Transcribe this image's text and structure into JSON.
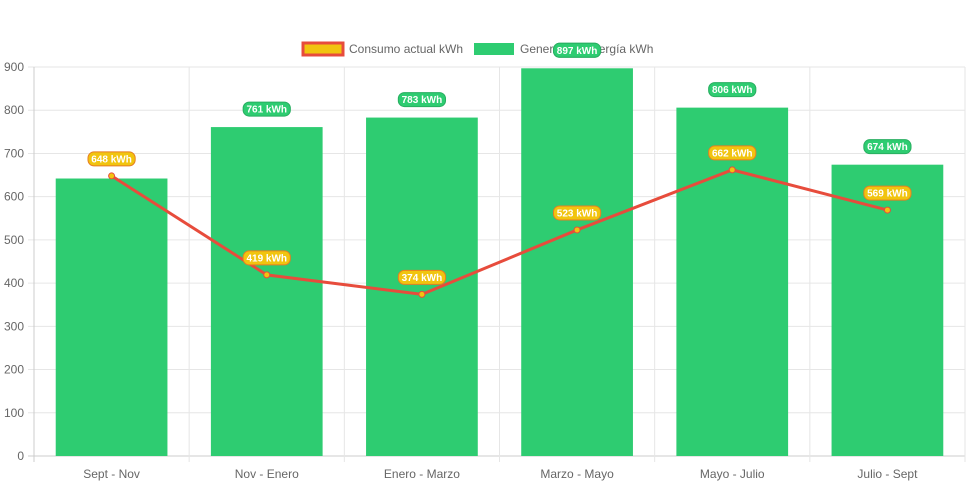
{
  "chart_data": {
    "type": "bar",
    "categories": [
      "Sept - Nov",
      "Nov - Enero",
      "Enero - Marzo",
      "Marzo - Mayo",
      "Mayo - Julio",
      "Julio - Sept"
    ],
    "series": [
      {
        "name": "Consumo actual kWh",
        "kind": "line",
        "values": [
          648,
          419,
          374,
          523,
          662,
          569
        ],
        "labels": [
          "648 kWh",
          "419 kWh",
          "374 kWh",
          "523 kWh",
          "662 kWh",
          "569 kWh"
        ],
        "color": "#e74c3c",
        "fill": "#f1c40f"
      },
      {
        "name": "Generación energía kWh",
        "kind": "bar",
        "values": [
          642,
          761,
          783,
          897,
          806,
          674
        ],
        "labels": [
          "",
          "761 kWh",
          "783 kWh",
          "897 kWh",
          "806 kWh",
          "674 kWh"
        ],
        "color": "#2ecc71"
      }
    ],
    "yticks": [
      "0",
      "100",
      "200",
      "300",
      "400",
      "500",
      "600",
      "700",
      "800",
      "900"
    ],
    "ylim": [
      0,
      900
    ],
    "grid": true,
    "legend": "top-center"
  }
}
